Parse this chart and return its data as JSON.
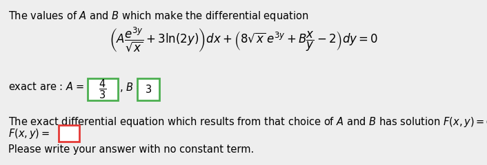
{
  "background_color": "#eeeeee",
  "text_color": "#000000",
  "box_A_color": "#4CAF50",
  "box_B_color": "#4CAF50",
  "box_Fxy_color": "#e53935",
  "fontsize_main": 10.5,
  "fontsize_eq": 12,
  "line1": "The values of $\\mathit{A}$ and $\\mathit{B}$ which make the differential equation",
  "line3": "The exact differential equation which results from that choice of $\\mathit{A}$ and $\\mathit{B}$ has solution $F(x, y) = C$ where",
  "line5": "Please write your answer with no constant term.",
  "eq_text": "$\\left( A\\dfrac{e^{3y}}{\\sqrt{x}} + 3\\ln(2y) \\right) dx + \\left( 8\\sqrt{x}\\,e^{3y} + B\\dfrac{x}{y} - 2 \\right) dy = 0$",
  "exact_label": "exact are : $A$ = ",
  "comma_B": ", $B$ = ",
  "fxy_label": "$F(x, y) = $",
  "A_val": "$\\dfrac{4}{3}$",
  "B_val": "$3$"
}
